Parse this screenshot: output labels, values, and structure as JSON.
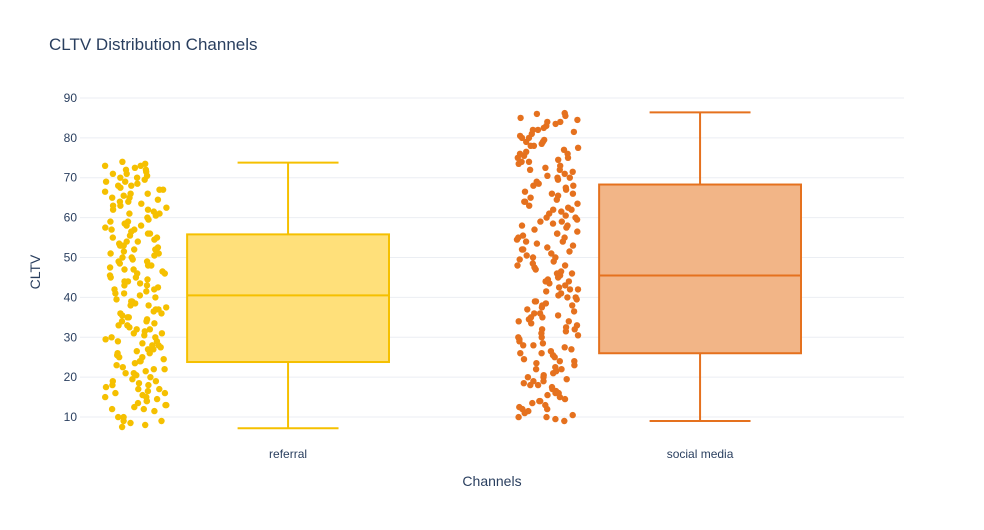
{
  "chart_data": {
    "type": "box",
    "title": "CLTV Distribution Channels",
    "xlabel": "Channels",
    "ylabel": "CLTV",
    "categories": [
      "referral",
      "social media"
    ],
    "ylim": [
      5,
      92
    ],
    "yticks": [
      10,
      20,
      30,
      40,
      50,
      60,
      70,
      80,
      90
    ],
    "grid": true,
    "legend": "none",
    "series": [
      {
        "category": "referral",
        "color": "#F5C000",
        "fill": "#FFE07A",
        "box": {
          "min": 7.2,
          "q1": 23.8,
          "median": 40.5,
          "q3": 55.8,
          "max": 73.8
        },
        "points": [
          8,
          9,
          12,
          13,
          14,
          15,
          16,
          17,
          18,
          19,
          20,
          21,
          22,
          23,
          24,
          25,
          26,
          27,
          28,
          29,
          30,
          31,
          32,
          33,
          34,
          35,
          36,
          37,
          38,
          39,
          40,
          41,
          42,
          43,
          44,
          45,
          46,
          47,
          48,
          49,
          50,
          51,
          52,
          53,
          54,
          55,
          56,
          57,
          58,
          59,
          60,
          61,
          62,
          63,
          64,
          65,
          66,
          67,
          68,
          69,
          70,
          71,
          72,
          73,
          74,
          7.5,
          8.5,
          10,
          11.5,
          12.5,
          13.5,
          14.5,
          15.5,
          16.5,
          17.5,
          18.5,
          19.5,
          20.5,
          21.5,
          22.5,
          23.5,
          24.5,
          25.5,
          26.5,
          27.5,
          28.5,
          29.5,
          30.5,
          31.5,
          32.5,
          33.5,
          34.5,
          35.5,
          36.5,
          37.5,
          38.5,
          39.5,
          40.5,
          41.5,
          42.5,
          43.5,
          44.5,
          45.5,
          46.5,
          47.5,
          48.5,
          49.5,
          50.5,
          51.5,
          52.5,
          53.5,
          54.5,
          55.5,
          56.5,
          57.5,
          58.5,
          59.5,
          60.5,
          61.5,
          62.5,
          63.5,
          64.5,
          65.5,
          66.5,
          67.5,
          68.5,
          69.5,
          70.5,
          71.5,
          72.5,
          73.5,
          9,
          14,
          19,
          24,
          29,
          34,
          39,
          44,
          49,
          54,
          59,
          64,
          69,
          12,
          17,
          22,
          27,
          32,
          37,
          42,
          47,
          52,
          57,
          62,
          67,
          72,
          15,
          25,
          35,
          45,
          55,
          65,
          18,
          28,
          38,
          48,
          58,
          68,
          21,
          31,
          41,
          51,
          61,
          71,
          13,
          33,
          53,
          73,
          16,
          36,
          56,
          10,
          30,
          50,
          70,
          26,
          46,
          66,
          43,
          53,
          63
        ]
      },
      {
        "category": "social media",
        "color": "#E5711E",
        "fill": "#F2B587",
        "box": {
          "min": 9.0,
          "q1": 26.0,
          "median": 45.5,
          "q3": 68.3,
          "max": 86.4
        },
        "points": [
          9,
          10,
          11,
          12,
          13,
          14,
          15,
          16,
          17,
          18,
          19,
          20,
          21,
          22,
          23,
          24,
          25,
          26,
          27,
          28,
          29,
          30,
          31,
          32,
          33,
          34,
          35,
          36,
          37,
          38,
          39,
          40,
          41,
          42,
          43,
          44,
          45,
          46,
          47,
          48,
          49,
          50,
          51,
          52,
          53,
          54,
          55,
          56,
          57,
          58,
          59,
          60,
          61,
          62,
          63,
          64,
          65,
          66,
          67,
          68,
          69,
          70,
          71,
          72,
          73,
          74,
          75,
          76,
          77,
          78,
          79,
          80,
          81,
          82,
          83,
          84,
          85,
          86,
          9.5,
          10.5,
          11.5,
          12.5,
          13.5,
          14.5,
          15.5,
          16.5,
          17.5,
          18.5,
          19.5,
          20.5,
          21.5,
          22.5,
          23.5,
          24.5,
          25.5,
          26.5,
          27.5,
          28.5,
          29.5,
          30.5,
          31.5,
          32.5,
          33.5,
          34.5,
          35.5,
          36.5,
          37.5,
          38.5,
          39.5,
          40.5,
          41.5,
          42.5,
          43.5,
          44.5,
          45.5,
          46.5,
          47.5,
          48.5,
          49.5,
          50.5,
          51.5,
          52.5,
          53.5,
          54.5,
          55.5,
          56.5,
          57.5,
          58.5,
          59.5,
          60.5,
          61.5,
          62.5,
          63.5,
          64.5,
          65.5,
          66.5,
          67.5,
          68.5,
          69.5,
          70.5,
          71.5,
          72.5,
          73.5,
          74.5,
          75.5,
          76.5,
          77.5,
          78.5,
          79.5,
          80.5,
          81.5,
          82.5,
          83.5,
          84.5,
          85.5,
          86.2,
          14,
          18,
          22,
          26,
          30,
          34,
          38,
          42,
          46,
          50,
          54,
          58,
          62,
          66,
          70,
          74,
          78,
          82,
          12,
          20,
          28,
          36,
          44,
          52,
          60,
          68,
          76,
          84,
          16,
          32,
          48,
          64,
          80,
          24,
          40,
          56,
          72,
          10,
          35,
          55,
          75,
          19,
          39,
          59,
          79
        ]
      }
    ]
  }
}
